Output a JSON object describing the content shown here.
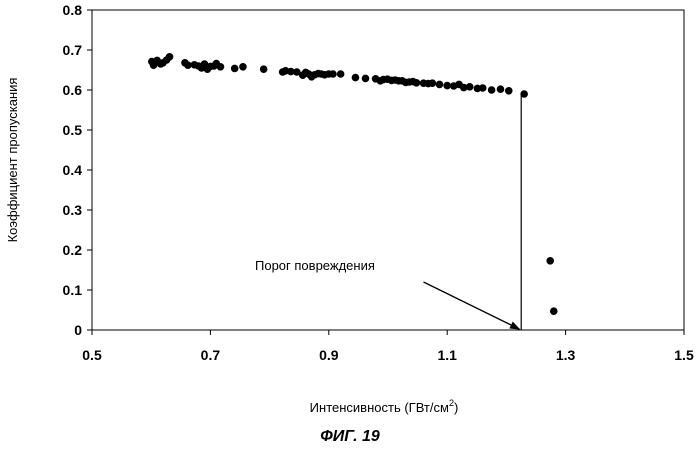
{
  "chart_data": {
    "type": "scatter",
    "title": "",
    "ylabel": "Коэффициент пропускания",
    "xlabel_main": "Интенсивность (ГВт/см",
    "xlabel_sup": "2",
    "xlabel_close": ")",
    "xlim": [
      0.5,
      1.5
    ],
    "ylim": [
      0,
      0.8
    ],
    "xticks": [
      0.5,
      0.7,
      0.9,
      1.1,
      1.3,
      1.5
    ],
    "xtick_labels": [
      "0.5",
      "0.7",
      "0.9",
      "1.1",
      "1.3",
      "1.5"
    ],
    "yticks": [
      0,
      0.1,
      0.2,
      0.3,
      0.4,
      0.5,
      0.6,
      0.7,
      0.8
    ],
    "ytick_labels": [
      "0",
      "0.1",
      "0.2",
      "0.3",
      "0.4",
      "0.5",
      "0.6",
      "0.7",
      "0.8"
    ],
    "grid": false,
    "marker_color": "#000000",
    "series": [
      {
        "points": [
          [
            0.601,
            0.671
          ],
          [
            0.604,
            0.662
          ],
          [
            0.61,
            0.674
          ],
          [
            0.616,
            0.665
          ],
          [
            0.62,
            0.668
          ],
          [
            0.626,
            0.675
          ],
          [
            0.631,
            0.683
          ],
          [
            0.657,
            0.668
          ],
          [
            0.662,
            0.662
          ],
          [
            0.673,
            0.663
          ],
          [
            0.68,
            0.66
          ],
          [
            0.685,
            0.655
          ],
          [
            0.69,
            0.665
          ],
          [
            0.695,
            0.652
          ],
          [
            0.7,
            0.659
          ],
          [
            0.706,
            0.66
          ],
          [
            0.71,
            0.666
          ],
          [
            0.717,
            0.658
          ],
          [
            0.741,
            0.654
          ],
          [
            0.755,
            0.658
          ],
          [
            0.79,
            0.652
          ],
          [
            0.822,
            0.645
          ],
          [
            0.827,
            0.648
          ],
          [
            0.836,
            0.646
          ],
          [
            0.846,
            0.645
          ],
          [
            0.856,
            0.637
          ],
          [
            0.861,
            0.644
          ],
          [
            0.866,
            0.64
          ],
          [
            0.871,
            0.633
          ],
          [
            0.876,
            0.638
          ],
          [
            0.882,
            0.641
          ],
          [
            0.887,
            0.64
          ],
          [
            0.893,
            0.638
          ],
          [
            0.9,
            0.64
          ],
          [
            0.907,
            0.64
          ],
          [
            0.92,
            0.64
          ],
          [
            0.945,
            0.631
          ],
          [
            0.962,
            0.629
          ],
          [
            0.979,
            0.628
          ],
          [
            0.987,
            0.623
          ],
          [
            0.992,
            0.626
          ],
          [
            0.999,
            0.627
          ],
          [
            1.006,
            0.624
          ],
          [
            1.012,
            0.625
          ],
          [
            1.018,
            0.623
          ],
          [
            1.024,
            0.623
          ],
          [
            1.03,
            0.619
          ],
          [
            1.036,
            0.62
          ],
          [
            1.042,
            0.621
          ],
          [
            1.048,
            0.618
          ],
          [
            1.06,
            0.617
          ],
          [
            1.068,
            0.616
          ],
          [
            1.075,
            0.617
          ],
          [
            1.087,
            0.614
          ],
          [
            1.1,
            0.611
          ],
          [
            1.111,
            0.61
          ],
          [
            1.12,
            0.614
          ],
          [
            1.128,
            0.606
          ],
          [
            1.138,
            0.608
          ],
          [
            1.151,
            0.604
          ],
          [
            1.16,
            0.605
          ],
          [
            1.175,
            0.6
          ],
          [
            1.19,
            0.602
          ],
          [
            1.204,
            0.598
          ],
          [
            1.23,
            0.59
          ],
          [
            1.274,
            0.173
          ],
          [
            1.28,
            0.047
          ]
        ]
      }
    ],
    "threshold_x": 1.225,
    "threshold_line_top": 0.59,
    "annotation": "Порог повреждения",
    "arrow_from": [
      1.06,
      0.12
    ],
    "arrow_to": [
      1.225,
      0.0
    ]
  },
  "figure_caption": "ФИГ. 19"
}
